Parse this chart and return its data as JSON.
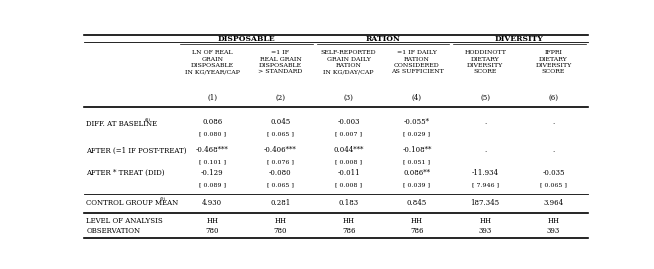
{
  "group_headers": [
    "DISPOSABLE",
    "RATION",
    "DIVERSITY"
  ],
  "col_headers": [
    "LN OF REAL\nGRAIN\nDISPOSABLE\nIN KG/YEAR/CAP",
    "=1 IF\nREAL GRAIN\nDISPOSABLE\n> STANDARD",
    "SELF-REPORTED\nGRAIN DAILY\nRATION\nIN KG/DAY/CAP",
    "=1 IF DAILY\nRATION\nCONSIDERED\nAS SUFFICIENT",
    "HODDINOTT\nDIETARY\nDIVERSITY\nSCORE",
    "IFPRI\nDIETARY\nDIVERSITY\nSCORE"
  ],
  "col_nums": [
    "(1)",
    "(2)",
    "(3)",
    "(4)",
    "(5)",
    "(6)"
  ],
  "row0_label": "DIFF. AT BASELINE",
  "row0_super": "(8)",
  "row0_vals": [
    "0.086",
    "0.045",
    "-0.003",
    "-0.055*",
    ".",
    "."
  ],
  "row0_se": [
    "[ 0.080 ]",
    "[ 0.065 ]",
    "[ 0.007 ]",
    "[ 0.029 ]",
    "",
    ""
  ],
  "row1_label": "AFTER (=1 IF POST-TREAT)",
  "row1_vals": [
    "-0.468***",
    "-0.406***",
    "0.044***",
    "-0.108**",
    ".",
    "."
  ],
  "row1_se": [
    "[ 0.101 ]",
    "[ 0.076 ]",
    "[ 0.008 ]",
    "[ 0.051 ]",
    "",
    ""
  ],
  "row2_label": "AFTER * TREAT (DID)",
  "row2_vals": [
    "-0.129",
    "-0.080",
    "-0.011",
    "0.086**",
    "-11.934",
    "-0.035"
  ],
  "row2_se": [
    "[ 0.089 ]",
    "[ 0.065 ]",
    "[ 0.008 ]",
    "[ 0.039 ]",
    "[ 7.946 ]",
    "[ 0.065 ]"
  ],
  "row3_label": "CONTROL GROUP MEAN",
  "row3_super": "(9)",
  "row3_vals": [
    "4.930",
    "0.281",
    "0.183",
    "0.845",
    "187.345",
    "3.964"
  ],
  "row4_label1": "LEVEL OF ANALYSIS",
  "row4_label2": "OBSERVATION",
  "row4_vals1": [
    "HH",
    "HH",
    "HH",
    "HH",
    "HH",
    "HH"
  ],
  "row4_vals2": [
    "780",
    "780",
    "786",
    "786",
    "393",
    "393"
  ],
  "bg_color": "#ffffff",
  "text_color": "#000000"
}
